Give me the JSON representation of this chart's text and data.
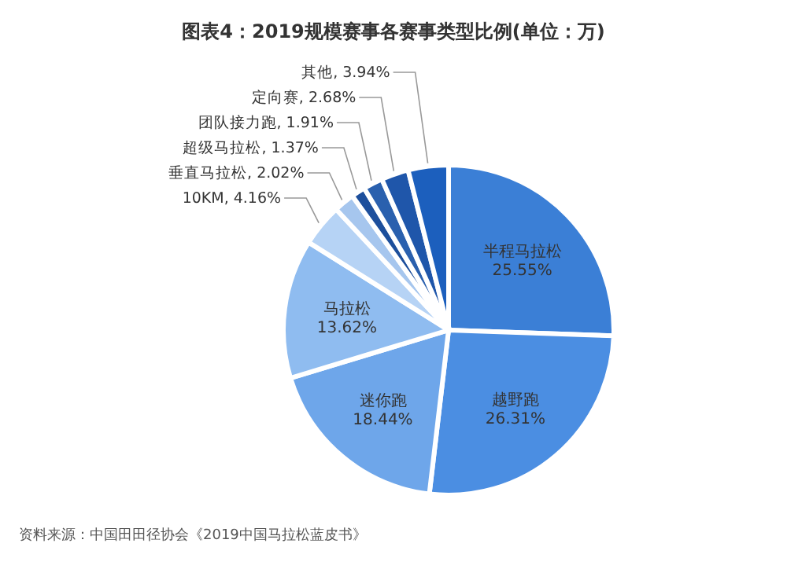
{
  "chart_data": {
    "type": "pie",
    "title": "图表4：2019规模赛事各赛事类型比例(单位：万)",
    "categories": [
      "半程马拉松",
      "越野跑",
      "迷你跑",
      "马拉松",
      "10KM",
      "垂直马拉松",
      "超级马拉松",
      "团队接力跑",
      "定向赛",
      "其他"
    ],
    "values": [
      25.55,
      26.31,
      18.44,
      13.62,
      4.16,
      2.02,
      1.37,
      1.91,
      2.68,
      3.94
    ],
    "value_labels": [
      "25.55%",
      "26.31%",
      "18.44%",
      "13.62%",
      "4.16%",
      "2.02%",
      "1.37%",
      "1.91%",
      "2.68%",
      "3.94%"
    ],
    "colors": [
      "#3b7fd6",
      "#4b8ee2",
      "#6ea6ea",
      "#8fbcf0",
      "#b6d3f5",
      "#a6c6ee",
      "#1d4f9c",
      "#2a60ae",
      "#1f56aa",
      "#1c5fbd"
    ],
    "legend": false,
    "annotations": [
      "资料来源：中国田田径协会《2019中国马拉松蓝皮书》"
    ]
  }
}
